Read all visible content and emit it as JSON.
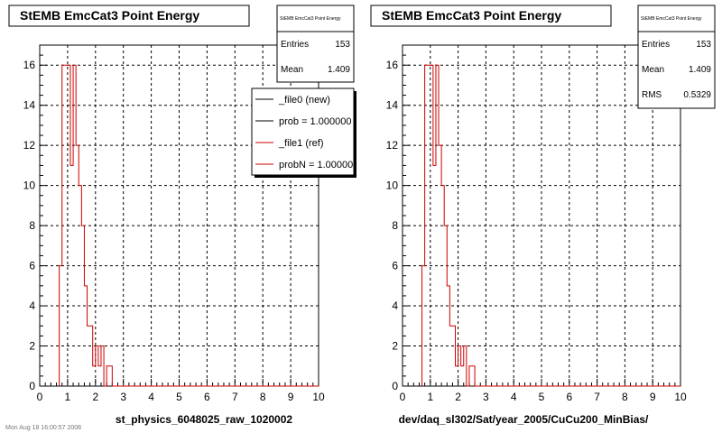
{
  "footer": "Mon Aug 18 16:00:57 2008",
  "chart_data": [
    {
      "type": "histogram",
      "title": "StEMB EmcCat3 Point Energy",
      "xlabel": "st_physics_6048025_raw_1020002",
      "xlim": [
        0,
        10
      ],
      "ylim": [
        0,
        17
      ],
      "x_ticks": [
        0,
        1,
        2,
        3,
        4,
        5,
        6,
        7,
        8,
        9,
        10
      ],
      "y_ticks": [
        0,
        2,
        4,
        6,
        8,
        10,
        12,
        14,
        16
      ],
      "grid": true,
      "bin_width": 0.1,
      "bin_start": 0.7,
      "series": [
        {
          "name": "_file1 (ref)",
          "color": "#cc0000",
          "values": [
            6,
            16,
            16,
            16,
            11,
            16,
            12,
            10,
            8,
            5,
            3,
            3,
            1,
            2,
            1,
            2,
            0,
            1,
            1,
            0,
            0,
            0,
            0,
            0,
            0,
            0,
            0,
            0,
            0,
            0,
            0,
            0,
            0,
            0,
            0,
            0,
            0,
            0,
            0,
            0,
            0,
            0,
            0,
            0,
            0,
            0,
            0,
            0,
            0,
            0,
            0,
            0,
            0,
            0,
            0,
            0,
            0,
            0,
            0,
            0,
            0,
            0,
            0,
            0,
            0,
            0,
            0,
            0,
            0,
            0,
            0,
            0,
            0,
            0,
            0,
            0,
            0,
            0,
            0,
            0,
            0,
            0,
            0,
            0,
            0,
            0,
            0,
            0,
            0,
            0,
            0,
            0,
            0
          ]
        }
      ],
      "stats": {
        "title": "StEMB EmcCat3 Point Energy",
        "entries_label": "Entries",
        "entries": "153",
        "mean_label": "Mean",
        "mean": "1.409"
      },
      "legend": {
        "placement": "top-right",
        "items": [
          {
            "label": "_file0 (new)",
            "color": "#000000"
          },
          {
            "label": "prob = 1.000000",
            "color": "#000000"
          },
          {
            "label": "_file1 (ref)",
            "color": "#cc0000"
          },
          {
            "label": "probN = 1.000000",
            "color": "#cc0000"
          }
        ]
      }
    },
    {
      "type": "histogram",
      "title": "StEMB EmcCat3 Point Energy",
      "xlabel": "dev/daq_sl302/Sat/year_2005/CuCu200_MinBias/",
      "xlim": [
        0,
        10
      ],
      "ylim": [
        0,
        17
      ],
      "x_ticks": [
        0,
        1,
        2,
        3,
        4,
        5,
        6,
        7,
        8,
        9,
        10
      ],
      "y_ticks": [
        0,
        2,
        4,
        6,
        8,
        10,
        12,
        14,
        16
      ],
      "grid": true,
      "bin_width": 0.1,
      "bin_start": 0.7,
      "series": [
        {
          "name": "",
          "color": "#cc0000",
          "values": [
            6,
            16,
            16,
            16,
            11,
            16,
            12,
            10,
            8,
            5,
            3,
            3,
            1,
            2,
            1,
            2,
            0,
            1,
            1,
            0,
            0,
            0,
            0,
            0,
            0,
            0,
            0,
            0,
            0,
            0,
            0,
            0,
            0,
            0,
            0,
            0,
            0,
            0,
            0,
            0,
            0,
            0,
            0,
            0,
            0,
            0,
            0,
            0,
            0,
            0,
            0,
            0,
            0,
            0,
            0,
            0,
            0,
            0,
            0,
            0,
            0,
            0,
            0,
            0,
            0,
            0,
            0,
            0,
            0,
            0,
            0,
            0,
            0,
            0,
            0,
            0,
            0,
            0,
            0,
            0,
            0,
            0,
            0,
            0,
            0,
            0,
            0,
            0,
            0,
            0,
            0,
            0,
            0
          ]
        }
      ],
      "stats": {
        "title": "StEMB EmcCat3 Point Energy",
        "entries_label": "Entries",
        "entries": "153",
        "mean_label": "Mean",
        "mean": "1.409",
        "rms_label": "RMS",
        "rms": "0.5329"
      }
    }
  ]
}
